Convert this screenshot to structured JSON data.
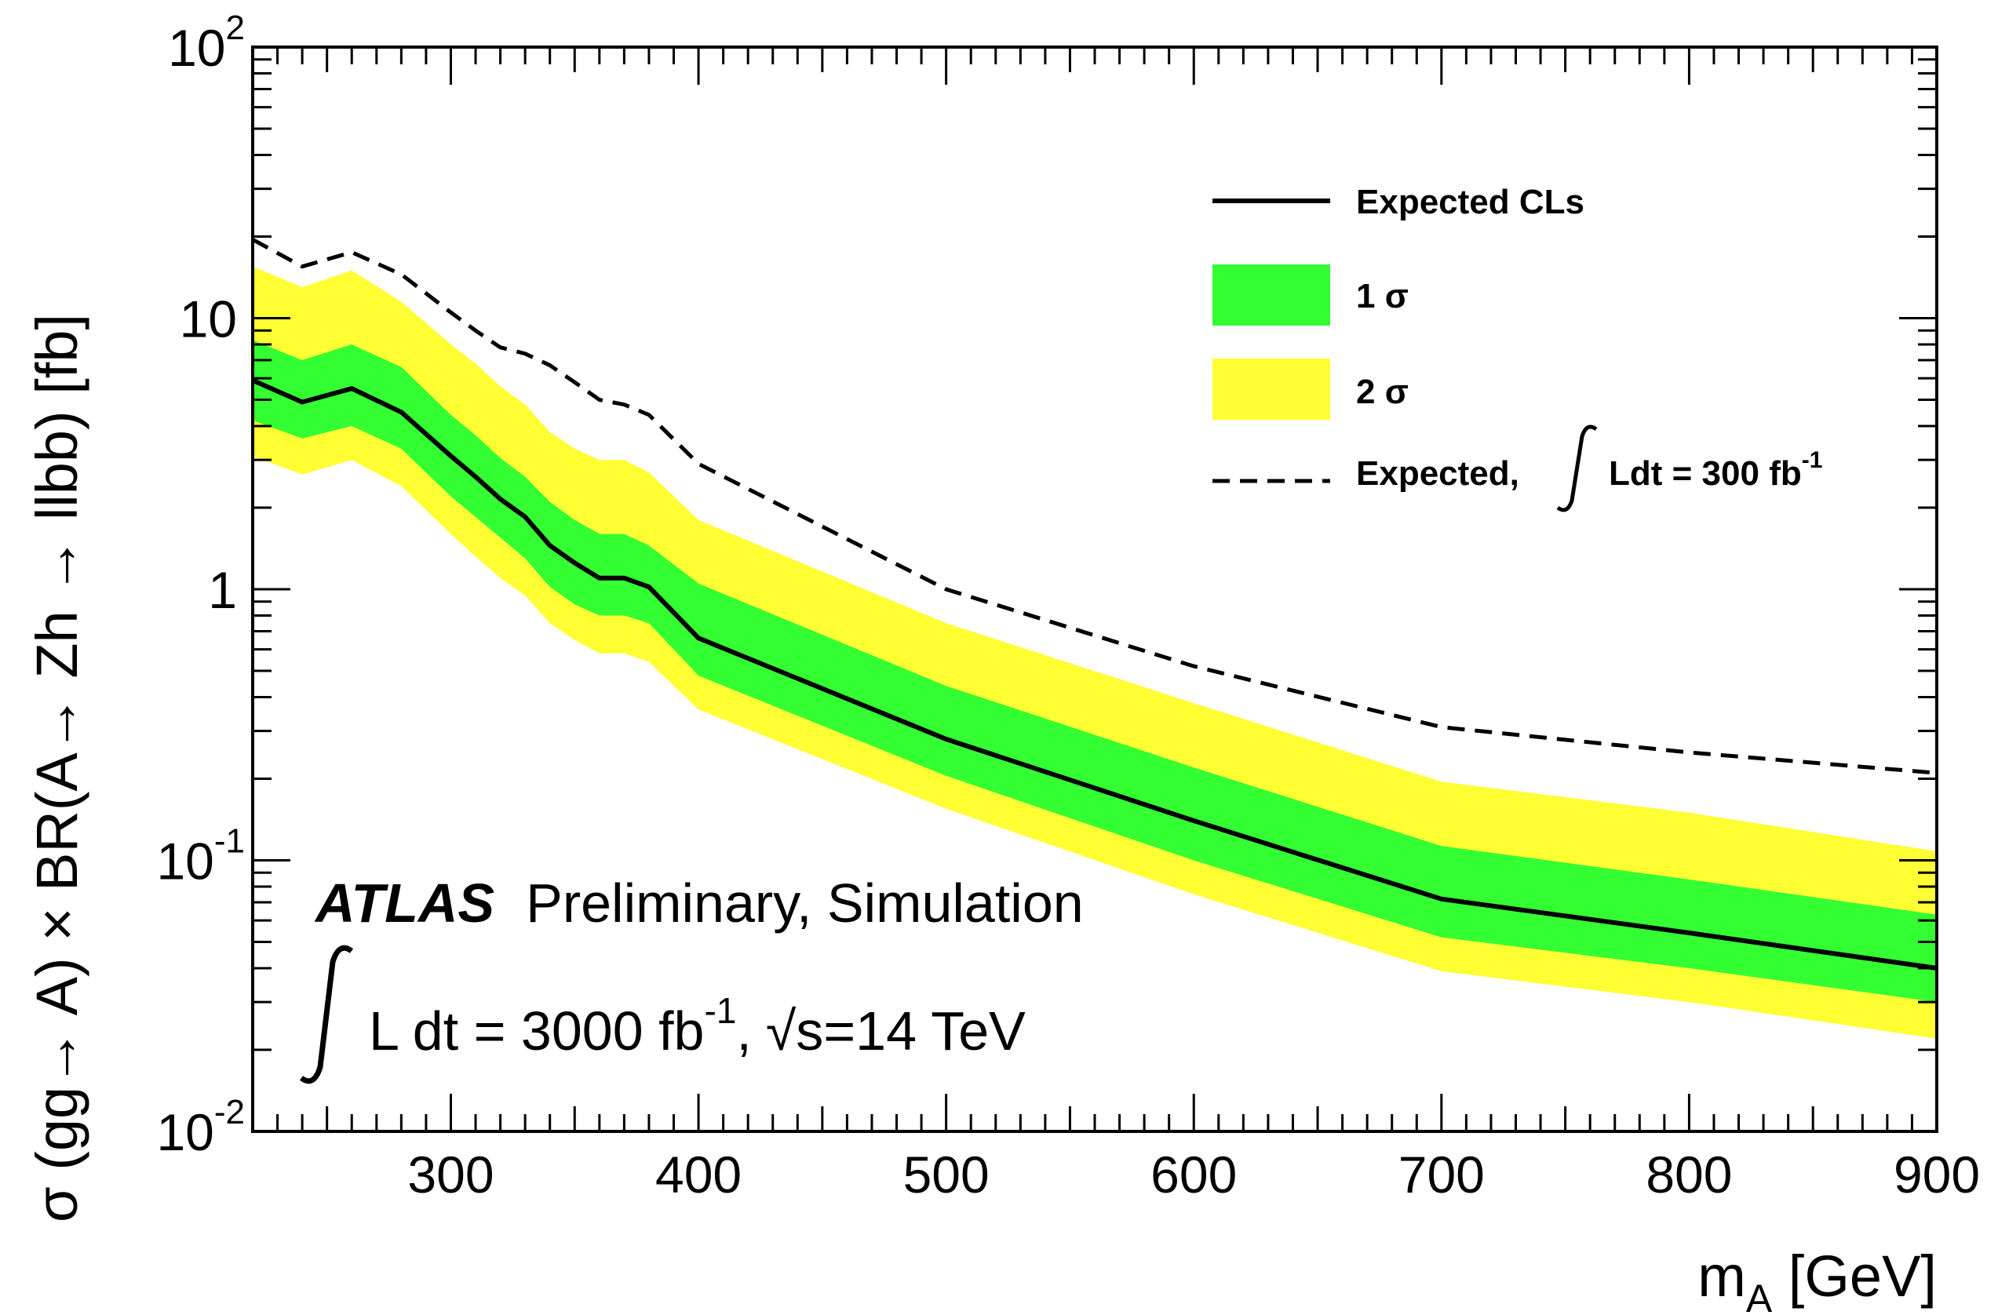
{
  "chart_data": {
    "type": "line",
    "xlabel": "m",
    "xlabel_sub": "A",
    "xlabel_unit": " [GeV]",
    "ylabel": "σ (gg→ A) × BR(A→ Zh → llbb) [fb]",
    "xlim": [
      220,
      900
    ],
    "ylim": [
      0.01,
      100
    ],
    "yscale": "log",
    "x_ticks": [
      300,
      400,
      500,
      600,
      700,
      800,
      900
    ],
    "x_tick_labels": [
      "300",
      "400",
      "500",
      "600",
      "700",
      "800",
      "900"
    ],
    "y_ticks": [
      {
        "value": 100,
        "base": "10",
        "exp": "2"
      },
      {
        "value": 10,
        "base": "10",
        "exp": ""
      },
      {
        "value": 1,
        "base": "1",
        "exp": ""
      },
      {
        "value": 0.1,
        "base": "10",
        "exp": "-1"
      },
      {
        "value": 0.01,
        "base": "10",
        "exp": "-2"
      }
    ],
    "x": [
      220,
      240,
      260,
      280,
      300,
      310,
      320,
      330,
      340,
      350,
      360,
      370,
      380,
      400,
      500,
      600,
      700,
      800,
      900
    ],
    "series": [
      {
        "name": "Expected CLs",
        "values": [
          5.9,
          4.9,
          5.5,
          4.5,
          3.1,
          2.6,
          2.15,
          1.85,
          1.45,
          1.25,
          1.1,
          1.1,
          1.02,
          0.66,
          0.28,
          0.14,
          0.072,
          0.054,
          0.04
        ]
      },
      {
        "name": "1 σ low",
        "values": [
          4.2,
          3.6,
          4.0,
          3.3,
          2.2,
          1.85,
          1.55,
          1.3,
          1.02,
          0.88,
          0.8,
          0.8,
          0.75,
          0.48,
          0.205,
          0.1,
          0.052,
          0.04,
          0.03
        ]
      },
      {
        "name": "1 σ high",
        "values": [
          8.3,
          7.0,
          8.0,
          6.6,
          4.4,
          3.7,
          3.05,
          2.6,
          2.1,
          1.8,
          1.6,
          1.6,
          1.45,
          1.05,
          0.44,
          0.22,
          0.113,
          0.085,
          0.063
        ]
      },
      {
        "name": "2 σ low",
        "values": [
          3.1,
          2.65,
          3.0,
          2.4,
          1.6,
          1.32,
          1.1,
          0.95,
          0.75,
          0.65,
          0.58,
          0.58,
          0.54,
          0.36,
          0.155,
          0.075,
          0.039,
          0.03,
          0.022
        ]
      },
      {
        "name": "2 σ high",
        "values": [
          15.5,
          13.0,
          15.0,
          11.5,
          8.0,
          6.8,
          5.6,
          4.8,
          3.8,
          3.3,
          3.0,
          3.0,
          2.7,
          1.8,
          0.75,
          0.38,
          0.195,
          0.15,
          0.108
        ]
      },
      {
        "name": "Expected, ∫Ldt = 300 fb-1",
        "values": [
          19.5,
          15.5,
          17.5,
          14.5,
          10.5,
          9.0,
          7.8,
          7.4,
          6.7,
          5.8,
          5.0,
          4.8,
          4.4,
          2.9,
          1.0,
          0.52,
          0.31,
          0.25,
          0.21
        ]
      }
    ],
    "colors": {
      "one_sigma": "#33ff33",
      "two_sigma": "#ffff33",
      "line": "#000000"
    },
    "legend": {
      "placement": "top-right",
      "expected": "Expected CLs",
      "one_sigma": "1 σ",
      "two_sigma": "2 σ",
      "expected_300_prefix": "Expected, ",
      "expected_300_main": "Ldt = 300 fb",
      "expected_300_sup": "-1"
    },
    "annotation": {
      "atlas": "ATLAS",
      "status": "Preliminary, Simulation",
      "lumi_main": "L dt = 3000 fb",
      "lumi_sup": "-1",
      "lumi_sep": ",",
      "root": "√",
      "energy": "s=14 TeV"
    }
  }
}
